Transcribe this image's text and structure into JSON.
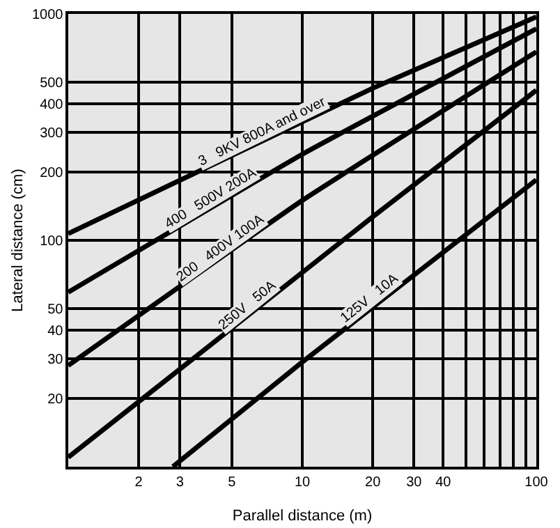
{
  "chart_data": {
    "type": "line",
    "xlabel": "Parallel distance (m)",
    "ylabel": "Lateral distance (cm)",
    "log": "xy",
    "grid": true,
    "legend": false,
    "marker": "none",
    "line_style": "solid",
    "xlim": [
      1,
      100
    ],
    "ylim": [
      10,
      1000
    ],
    "xticks": [
      2,
      3,
      5,
      10,
      20,
      30,
      40,
      {
        "value": 50,
        "label": null
      },
      {
        "value": 60,
        "label": null
      },
      {
        "value": 70,
        "label": null
      },
      {
        "value": 80,
        "label": null
      },
      {
        "value": 90,
        "label": null
      },
      100
    ],
    "yticks": [
      20,
      30,
      40,
      50,
      100,
      200,
      300,
      400,
      500,
      1000
    ],
    "series": [
      {
        "name": "3   9KV 800A and over",
        "color": "#000000",
        "x": [
          1,
          20,
          100
        ],
        "values": [
          107,
          470,
          970
        ]
      },
      {
        "name": "400   500V 200A",
        "color": "#000000",
        "x": [
          1,
          10,
          100
        ],
        "values": [
          59,
          240,
          860
        ]
      },
      {
        "name": "200   400V 100A",
        "color": "#000000",
        "x": [
          1,
          10,
          100
        ],
        "values": [
          28,
          150,
          680
        ]
      },
      {
        "name": "250V   50A",
        "color": "#000000",
        "x": [
          1,
          20,
          100
        ],
        "values": [
          11,
          127,
          460
        ]
      },
      {
        "name": "125V   10A",
        "color": "#000000",
        "x": [
          2.8,
          10,
          100
        ],
        "values": [
          10,
          29,
          185
        ]
      }
    ]
  }
}
